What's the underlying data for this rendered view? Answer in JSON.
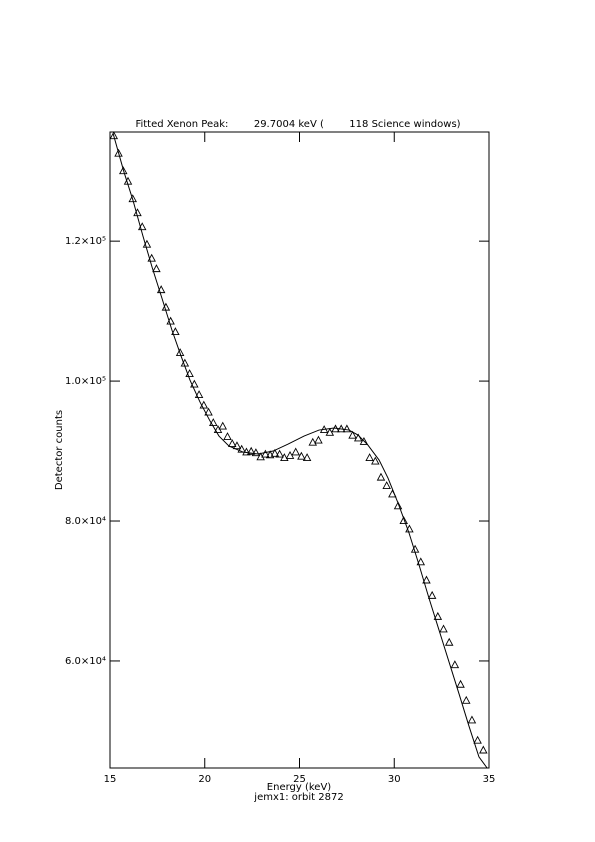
{
  "chart_data": {
    "type": "scatter",
    "title": "Fitted Xenon Peak:        29.7004 keV (        118 Science windows)",
    "xlabel": "Energy (keV)",
    "subtitle": "jemx1: orbit 2872",
    "ylabel": "Detector counts",
    "xlim": [
      15,
      35
    ],
    "ylim": [
      44700,
      135600
    ],
    "xticks": [
      15,
      20,
      25,
      30,
      35
    ],
    "yticks": [
      {
        "value": 60000,
        "label": "6.0×10⁴"
      },
      {
        "value": 80000,
        "label": "8.0×10⁴"
      },
      {
        "value": 100000,
        "label": "1.0×10⁵"
      },
      {
        "value": 120000,
        "label": "1.2×10⁵"
      }
    ],
    "color": "#000000",
    "series": [
      {
        "x": [
          15.2,
          15.45,
          15.7,
          15.95,
          16.2,
          16.45,
          16.7,
          16.95,
          17.2,
          17.45,
          17.7,
          17.95,
          18.2,
          18.45,
          18.7,
          18.95,
          19.2,
          19.45,
          19.7,
          19.95,
          20.2,
          20.45,
          20.7,
          20.95,
          21.2,
          21.45,
          21.7,
          21.95,
          22.2,
          22.45,
          22.7,
          22.95,
          23.2,
          23.45,
          23.7,
          23.95,
          24.2,
          24.5,
          24.8,
          25.1,
          25.4,
          25.7,
          26.0,
          26.3,
          26.6,
          26.9,
          27.2,
          27.5,
          27.8,
          28.1,
          28.4,
          28.7,
          29.0,
          29.3,
          29.6,
          29.9,
          30.2,
          30.5,
          30.8,
          31.1,
          31.4,
          31.7,
          32.0,
          32.3,
          32.6,
          32.9,
          33.2,
          33.5,
          33.8,
          34.1,
          34.4,
          34.7
        ],
        "values": [
          135000,
          132500,
          130000,
          128500,
          126000,
          124000,
          122000,
          119500,
          117500,
          116000,
          113000,
          110500,
          108500,
          107000,
          104000,
          102500,
          101000,
          99500,
          98000,
          96500,
          95500,
          94000,
          93000,
          93500,
          92000,
          91000,
          90700,
          90200,
          89800,
          89900,
          89700,
          89100,
          89500,
          89400,
          89600,
          89500,
          89000,
          89300,
          89800,
          89200,
          89000,
          91200,
          91500,
          93000,
          92600,
          93100,
          93100,
          93100,
          92200,
          91800,
          91300,
          89000,
          88500,
          86200,
          85000,
          83800,
          82100,
          80000,
          78800,
          75900,
          74100,
          71500,
          69300,
          66300,
          64500,
          62600,
          59400,
          56600,
          54300,
          51500,
          48600,
          47200
        ]
      },
      {
        "type": "line",
        "x": [
          15.16,
          15.74,
          16.21,
          16.74,
          17.22,
          17.74,
          18.27,
          18.75,
          19.22,
          19.75,
          20.28,
          20.75,
          21.28,
          22.02,
          22.81,
          23.61,
          24.4,
          25.24,
          26.03,
          26.82,
          27.61,
          28.09,
          28.61,
          29.2,
          29.67,
          30.2,
          30.78,
          31.31,
          31.83,
          32.36,
          32.89,
          33.42,
          33.94,
          34.47,
          34.9
        ],
        "values": [
          135428,
          129857,
          125857,
          120714,
          116286,
          111857,
          107286,
          103571,
          100143,
          97000,
          94286,
          92143,
          90714,
          89857,
          89571,
          90000,
          91000,
          92143,
          93000,
          93286,
          93000,
          92286,
          90857,
          88714,
          86143,
          82571,
          78286,
          73714,
          69000,
          64429,
          59857,
          55286,
          50714,
          46286,
          44700
        ]
      }
    ]
  }
}
